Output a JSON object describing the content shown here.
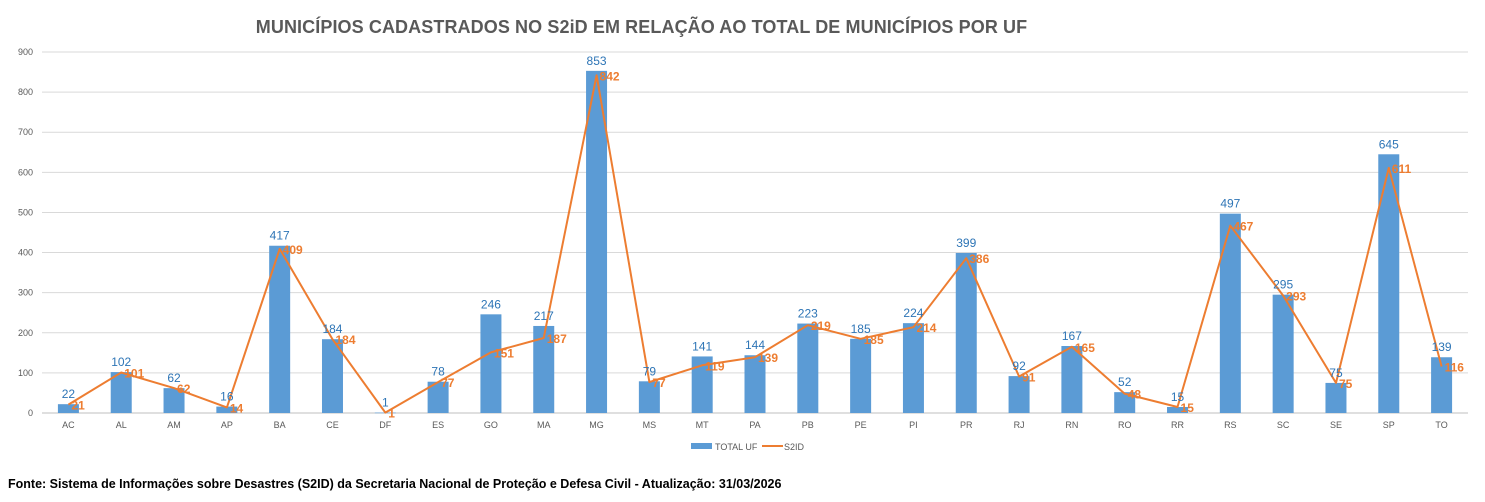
{
  "chart_data": {
    "type": "bar",
    "title": "MUNICÍPIOS CADASTRADOS NO S2iD EM RELAÇÃO AO TOTAL DE MUNICÍPIOS POR UF",
    "xlabel": "",
    "ylabel": "",
    "ylim": [
      0,
      900
    ],
    "yticks": [
      0,
      100,
      200,
      300,
      400,
      500,
      600,
      700,
      800,
      900
    ],
    "grid": true,
    "legend_position": "bottom",
    "categories": [
      "AC",
      "AL",
      "AM",
      "AP",
      "BA",
      "CE",
      "DF",
      "ES",
      "GO",
      "MA",
      "MG",
      "MS",
      "MT",
      "PA",
      "PB",
      "PE",
      "PI",
      "PR",
      "RJ",
      "RN",
      "RO",
      "RR",
      "RS",
      "SC",
      "SE",
      "SP",
      "TO"
    ],
    "series": [
      {
        "name": "TOTAL UF",
        "type": "bar",
        "color": "#5b9bd5",
        "label_color": "#2e75b6",
        "values": [
          22,
          102,
          62,
          16,
          417,
          184,
          1,
          78,
          246,
          217,
          853,
          79,
          141,
          144,
          223,
          185,
          224,
          399,
          92,
          167,
          52,
          15,
          497,
          295,
          75,
          645,
          139
        ]
      },
      {
        "name": "S2ID",
        "type": "line",
        "color": "#ed7d31",
        "label_color": "#ed7d31",
        "values": [
          21,
          101,
          62,
          14,
          409,
          184,
          1,
          77,
          151,
          187,
          842,
          77,
          119,
          139,
          219,
          185,
          214,
          386,
          91,
          165,
          48,
          15,
          467,
          293,
          75,
          611,
          116
        ]
      }
    ]
  },
  "footer": {
    "source_text": "Fonte: Sistema de Informações sobre Desastres (S2ID) da Secretaria Nacional de Proteção e Defesa Civil - Atualização: 31/03/2026"
  }
}
